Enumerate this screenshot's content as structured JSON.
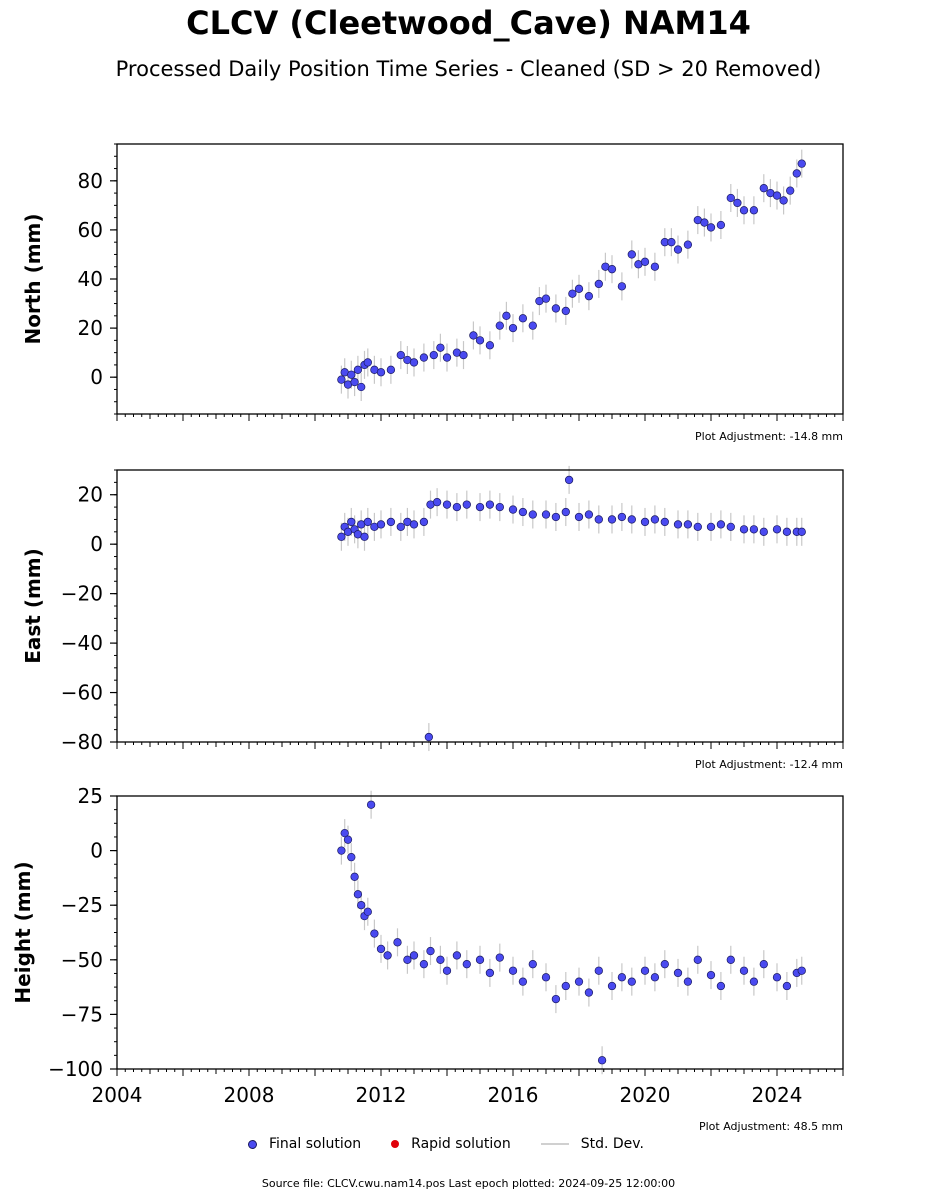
{
  "title": "CLCV (Cleetwood_Cave) NAM14",
  "subtitle": "Processed Daily Position Time Series - Cleaned (SD > 20 Removed)",
  "legend": {
    "final": "Final solution",
    "rapid": "Rapid solution",
    "std": "Std. Dev."
  },
  "footer": "Source file: CLCV.cwu.nam14.pos  Last epoch plotted: 2024-09-25 12:00:00",
  "colors": {
    "final": "#4a4af0",
    "final_edge": "#1a1a60",
    "rapid": "#e0000a",
    "std": "#c8c8c8"
  },
  "chart_data": [
    {
      "type": "scatter",
      "ylabel": "North (mm)",
      "adjustment": "Plot Adjustment: -14.8 mm",
      "xlim": [
        2004,
        2026
      ],
      "ylim": [
        -15,
        95
      ],
      "yticks": [
        0,
        20,
        40,
        60,
        80
      ],
      "series": [
        {
          "name": "Final solution",
          "points": [
            [
              2010.8,
              -1
            ],
            [
              2010.9,
              2
            ],
            [
              2011.0,
              -3
            ],
            [
              2011.1,
              1
            ],
            [
              2011.2,
              -2
            ],
            [
              2011.3,
              3
            ],
            [
              2011.4,
              -4
            ],
            [
              2011.5,
              5
            ],
            [
              2011.6,
              6
            ],
            [
              2011.8,
              3
            ],
            [
              2012.0,
              2
            ],
            [
              2012.3,
              3
            ],
            [
              2012.6,
              9
            ],
            [
              2012.8,
              7
            ],
            [
              2013.0,
              6
            ],
            [
              2013.3,
              8
            ],
            [
              2013.6,
              9
            ],
            [
              2013.8,
              12
            ],
            [
              2014.0,
              8
            ],
            [
              2014.3,
              10
            ],
            [
              2014.5,
              9
            ],
            [
              2014.8,
              17
            ],
            [
              2015.0,
              15
            ],
            [
              2015.3,
              13
            ],
            [
              2015.6,
              21
            ],
            [
              2015.8,
              25
            ],
            [
              2016.0,
              20
            ],
            [
              2016.3,
              24
            ],
            [
              2016.6,
              21
            ],
            [
              2016.8,
              31
            ],
            [
              2017.0,
              32
            ],
            [
              2017.3,
              28
            ],
            [
              2017.6,
              27
            ],
            [
              2017.8,
              34
            ],
            [
              2018.0,
              36
            ],
            [
              2018.3,
              33
            ],
            [
              2018.6,
              38
            ],
            [
              2018.8,
              45
            ],
            [
              2019.0,
              44
            ],
            [
              2019.3,
              37
            ],
            [
              2019.6,
              50
            ],
            [
              2019.8,
              46
            ],
            [
              2020.0,
              47
            ],
            [
              2020.3,
              45
            ],
            [
              2020.6,
              55
            ],
            [
              2020.8,
              55
            ],
            [
              2021.0,
              52
            ],
            [
              2021.3,
              54
            ],
            [
              2021.6,
              64
            ],
            [
              2021.8,
              63
            ],
            [
              2022.0,
              61
            ],
            [
              2022.3,
              62
            ],
            [
              2022.6,
              73
            ],
            [
              2022.8,
              71
            ],
            [
              2023.0,
              68
            ],
            [
              2023.3,
              68
            ],
            [
              2023.6,
              77
            ],
            [
              2023.8,
              75
            ],
            [
              2024.0,
              74
            ],
            [
              2024.2,
              72
            ],
            [
              2024.4,
              76
            ],
            [
              2024.6,
              83
            ],
            [
              2024.75,
              87
            ]
          ]
        }
      ]
    },
    {
      "type": "scatter",
      "ylabel": "East (mm)",
      "adjustment": "Plot Adjustment: -12.4 mm",
      "xlim": [
        2004,
        2026
      ],
      "ylim": [
        -80,
        30
      ],
      "yticks": [
        -80,
        -60,
        -40,
        -20,
        0,
        20
      ],
      "series": [
        {
          "name": "Final solution",
          "points": [
            [
              2010.8,
              3
            ],
            [
              2010.9,
              7
            ],
            [
              2011.0,
              5
            ],
            [
              2011.1,
              9
            ],
            [
              2011.2,
              6
            ],
            [
              2011.3,
              4
            ],
            [
              2011.4,
              8
            ],
            [
              2011.5,
              3
            ],
            [
              2011.6,
              9
            ],
            [
              2011.8,
              7
            ],
            [
              2012.0,
              8
            ],
            [
              2012.3,
              9
            ],
            [
              2012.6,
              7
            ],
            [
              2012.8,
              9
            ],
            [
              2013.0,
              8
            ],
            [
              2013.3,
              9
            ],
            [
              2013.45,
              -78
            ],
            [
              2013.5,
              16
            ],
            [
              2013.7,
              17
            ],
            [
              2014.0,
              16
            ],
            [
              2014.3,
              15
            ],
            [
              2014.6,
              16
            ],
            [
              2015.0,
              15
            ],
            [
              2015.3,
              16
            ],
            [
              2015.6,
              15
            ],
            [
              2016.0,
              14
            ],
            [
              2016.3,
              13
            ],
            [
              2016.6,
              12
            ],
            [
              2017.0,
              12
            ],
            [
              2017.3,
              11
            ],
            [
              2017.6,
              13
            ],
            [
              2017.7,
              26
            ],
            [
              2018.0,
              11
            ],
            [
              2018.3,
              12
            ],
            [
              2018.6,
              10
            ],
            [
              2019.0,
              10
            ],
            [
              2019.3,
              11
            ],
            [
              2019.6,
              10
            ],
            [
              2020.0,
              9
            ],
            [
              2020.3,
              10
            ],
            [
              2020.6,
              9
            ],
            [
              2021.0,
              8
            ],
            [
              2021.3,
              8
            ],
            [
              2021.6,
              7
            ],
            [
              2022.0,
              7
            ],
            [
              2022.3,
              8
            ],
            [
              2022.6,
              7
            ],
            [
              2023.0,
              6
            ],
            [
              2023.3,
              6
            ],
            [
              2023.6,
              5
            ],
            [
              2024.0,
              6
            ],
            [
              2024.3,
              5
            ],
            [
              2024.6,
              5
            ],
            [
              2024.75,
              5
            ]
          ]
        }
      ]
    },
    {
      "type": "scatter",
      "ylabel": "Height (mm)",
      "adjustment": "Plot Adjustment: 48.5 mm",
      "xlim": [
        2004,
        2026
      ],
      "ylim": [
        -100,
        25
      ],
      "yticks": [
        -100,
        -75,
        -50,
        -25,
        0,
        25
      ],
      "xticks": [
        2004,
        2008,
        2012,
        2016,
        2020,
        2024
      ],
      "series": [
        {
          "name": "Final solution",
          "points": [
            [
              2010.8,
              0
            ],
            [
              2010.9,
              8
            ],
            [
              2011.0,
              5
            ],
            [
              2011.1,
              -3
            ],
            [
              2011.2,
              -12
            ],
            [
              2011.3,
              -20
            ],
            [
              2011.4,
              -25
            ],
            [
              2011.5,
              -30
            ],
            [
              2011.6,
              -28
            ],
            [
              2011.7,
              21
            ],
            [
              2011.8,
              -38
            ],
            [
              2012.0,
              -45
            ],
            [
              2012.2,
              -48
            ],
            [
              2012.5,
              -42
            ],
            [
              2012.8,
              -50
            ],
            [
              2013.0,
              -48
            ],
            [
              2013.3,
              -52
            ],
            [
              2013.5,
              -46
            ],
            [
              2013.8,
              -50
            ],
            [
              2014.0,
              -55
            ],
            [
              2014.3,
              -48
            ],
            [
              2014.6,
              -52
            ],
            [
              2015.0,
              -50
            ],
            [
              2015.3,
              -56
            ],
            [
              2015.6,
              -49
            ],
            [
              2016.0,
              -55
            ],
            [
              2016.3,
              -60
            ],
            [
              2016.6,
              -52
            ],
            [
              2017.0,
              -58
            ],
            [
              2017.3,
              -68
            ],
            [
              2017.6,
              -62
            ],
            [
              2018.0,
              -60
            ],
            [
              2018.3,
              -65
            ],
            [
              2018.6,
              -55
            ],
            [
              2018.7,
              -96
            ],
            [
              2019.0,
              -62
            ],
            [
              2019.3,
              -58
            ],
            [
              2019.6,
              -60
            ],
            [
              2020.0,
              -55
            ],
            [
              2020.3,
              -58
            ],
            [
              2020.6,
              -52
            ],
            [
              2021.0,
              -56
            ],
            [
              2021.3,
              -60
            ],
            [
              2021.6,
              -50
            ],
            [
              2022.0,
              -57
            ],
            [
              2022.3,
              -62
            ],
            [
              2022.6,
              -50
            ],
            [
              2023.0,
              -55
            ],
            [
              2023.3,
              -60
            ],
            [
              2023.6,
              -52
            ],
            [
              2024.0,
              -58
            ],
            [
              2024.3,
              -62
            ],
            [
              2024.6,
              -56
            ],
            [
              2024.75,
              -55
            ]
          ]
        }
      ]
    }
  ]
}
